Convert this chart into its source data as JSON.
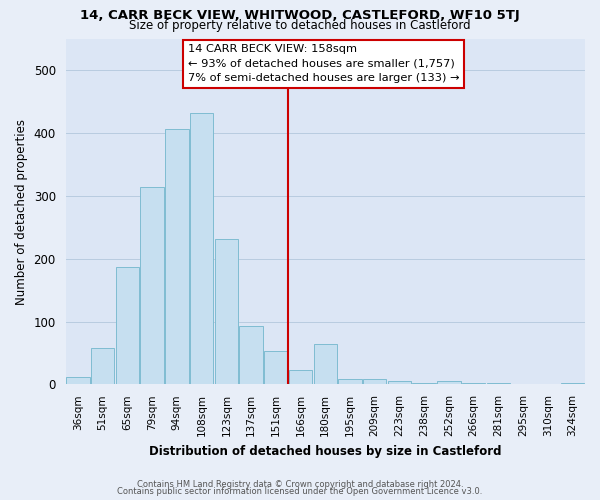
{
  "title": "14, CARR BECK VIEW, WHITWOOD, CASTLEFORD, WF10 5TJ",
  "subtitle": "Size of property relative to detached houses in Castleford",
  "xlabel": "Distribution of detached houses by size in Castleford",
  "ylabel": "Number of detached properties",
  "categories": [
    "36sqm",
    "51sqm",
    "65sqm",
    "79sqm",
    "94sqm",
    "108sqm",
    "123sqm",
    "137sqm",
    "151sqm",
    "166sqm",
    "180sqm",
    "195sqm",
    "209sqm",
    "223sqm",
    "238sqm",
    "252sqm",
    "266sqm",
    "281sqm",
    "295sqm",
    "310sqm",
    "324sqm"
  ],
  "values": [
    12,
    58,
    187,
    315,
    407,
    432,
    232,
    93,
    53,
    23,
    65,
    8,
    8,
    5,
    2,
    5,
    2,
    2,
    0,
    0,
    2
  ],
  "bar_color": "#c6dff0",
  "bar_edge_color": "#7fbcd2",
  "vline_color": "#cc0000",
  "annotation_title": "14 CARR BECK VIEW: 158sqm",
  "annotation_line1": "← 93% of detached houses are smaller (1,757)",
  "annotation_line2": "7% of semi-detached houses are larger (133) →",
  "ylim": [
    0,
    550
  ],
  "footnote1": "Contains HM Land Registry data © Crown copyright and database right 2024.",
  "footnote2": "Contains public sector information licensed under the Open Government Licence v3.0.",
  "bg_color": "#e8eef8",
  "plot_bg_color": "#dce6f5"
}
